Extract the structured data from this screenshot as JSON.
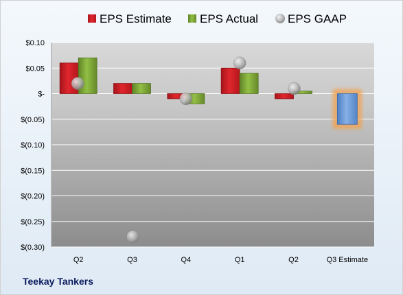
{
  "company": "Teekay Tankers",
  "chart_data": {
    "type": "bar",
    "categories": [
      "Q2",
      "Q3",
      "Q4",
      "Q1",
      "Q2",
      "Q3 Estimate"
    ],
    "series": [
      {
        "name": "EPS Estimate",
        "color": "#d11f26",
        "values": [
          0.06,
          0.02,
          -0.01,
          0.05,
          -0.01,
          null
        ]
      },
      {
        "name": "EPS Actual",
        "color": "#7fa736",
        "values": [
          0.07,
          0.02,
          -0.02,
          0.04,
          0.005,
          null
        ]
      },
      {
        "name": "EPS GAAP",
        "color": "#b8b8b8",
        "marker": "circle",
        "values": [
          0.02,
          -0.28,
          -0.01,
          0.06,
          0.01,
          null
        ]
      },
      {
        "name": "",
        "color": "#6d9bd6",
        "highlight": "#f5a04a",
        "values": [
          null,
          null,
          null,
          null,
          null,
          -0.06
        ]
      }
    ],
    "ylim": [
      -0.3,
      0.1
    ],
    "yticks": [
      0.1,
      0.05,
      0.0,
      -0.05,
      -0.1,
      -0.15,
      -0.2,
      -0.25,
      -0.3
    ],
    "ytick_labels": [
      "$0.10",
      "$0.05",
      "$-",
      "$(0.05)",
      "$(0.10)",
      "$(0.15)",
      "$(0.20)",
      "$(0.25)",
      "$(0.30)"
    ],
    "legend_position": "top",
    "grid": true
  }
}
